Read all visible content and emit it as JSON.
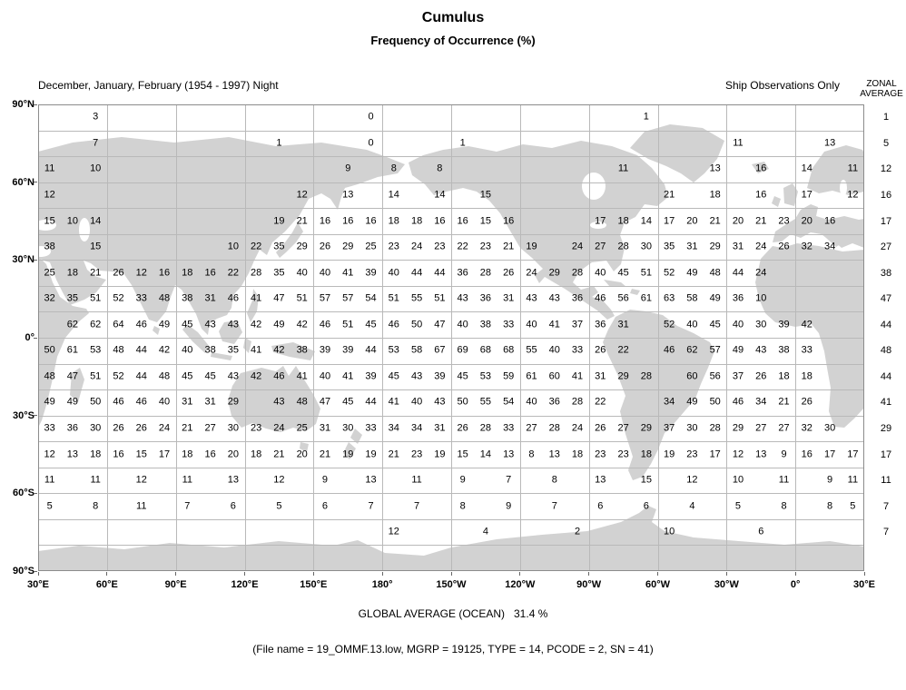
{
  "title": "Cumulus",
  "subtitle": "Frequency of Occurrence (%)",
  "header": {
    "left": "December, January, February (1954 - 1997) Night",
    "right": "Ship Observations Only",
    "zonal_line1": "ZONAL",
    "zonal_line2": "AVERAGE"
  },
  "footer": {
    "global_average": "GLOBAL AVERAGE (OCEAN)   31.4 %",
    "file_info": "(File name = 19_OMMF.13.low, MGRP = 19125, TYPE = 14, PCODE = 2, SN = 41)"
  },
  "colors": {
    "land": "#d2d2d2",
    "grid": "#b9b9b9",
    "border": "#8c8c8c",
    "text": "#000000"
  },
  "chart_data": {
    "type": "heatmap",
    "title": "Cumulus",
    "subtitle": "Frequency of Occurrence (%)",
    "period": "December, January, February (1954 - 1997) Night",
    "source": "Ship Observations Only",
    "units": "percent frequency of occurrence",
    "global_average_ocean_pct": 31.4,
    "lat_ticks": [
      "90°N",
      "60°N",
      "30°N",
      "0°",
      "30°S",
      "60°S",
      "90°S"
    ],
    "lon_ticks": [
      "30°E",
      "60°E",
      "90°E",
      "120°E",
      "150°E",
      "180°",
      "150°W",
      "120°W",
      "90°W",
      "60°W",
      "30°W",
      "0°",
      "30°E"
    ],
    "grid": {
      "cols": 36,
      "rows": 18,
      "cell_deg": 10,
      "lon_start": "30°E"
    },
    "rows": [
      {
        "band": "90N-80N",
        "zonal_average": 1,
        "runs": [
          {
            "start": 2,
            "values": [
              3
            ]
          },
          {
            "start": 14,
            "values": [
              0
            ]
          },
          {
            "start": 26,
            "values": [
              1
            ]
          }
        ]
      },
      {
        "band": "80N-70N",
        "zonal_average": 5,
        "runs": [
          {
            "start": 2,
            "values": [
              7
            ]
          },
          {
            "start": 10,
            "values": [
              1
            ]
          },
          {
            "start": 14,
            "values": [
              0
            ]
          },
          {
            "start": 18,
            "values": [
              1
            ]
          },
          {
            "start": 30,
            "values": [
              11
            ]
          },
          {
            "start": 34,
            "values": [
              13
            ]
          }
        ]
      },
      {
        "band": "70N-60N",
        "zonal_average": 12,
        "runs": [
          {
            "start": 0,
            "values": [
              11
            ]
          },
          {
            "start": 2,
            "values": [
              10
            ]
          },
          {
            "start": 13,
            "step": 2,
            "values": [
              9,
              8,
              8
            ]
          },
          {
            "start": 25,
            "values": [
              11
            ]
          },
          {
            "start": 29,
            "step": 2,
            "values": [
              13,
              16,
              14,
              11
            ]
          }
        ]
      },
      {
        "band": "60N-50N",
        "zonal_average": 16,
        "runs": [
          {
            "start": 0,
            "values": [
              12
            ]
          },
          {
            "start": 11,
            "step": 2,
            "values": [
              12,
              13,
              14,
              14,
              15
            ]
          },
          {
            "start": 27,
            "step": 2,
            "values": [
              21,
              18,
              16,
              17,
              12
            ]
          }
        ]
      },
      {
        "band": "50N-40N",
        "zonal_average": 17,
        "runs": [
          {
            "start": 0,
            "values": [
              15,
              10,
              14
            ]
          },
          {
            "start": 10,
            "values": [
              19,
              21,
              16,
              16,
              16,
              18,
              18,
              16,
              16,
              15,
              16
            ]
          },
          {
            "start": 24,
            "values": [
              17,
              18,
              14,
              17,
              20,
              21,
              20,
              21,
              23,
              20,
              16
            ]
          }
        ]
      },
      {
        "band": "40N-30N",
        "zonal_average": 27,
        "runs": [
          {
            "start": 0,
            "values": [
              38
            ]
          },
          {
            "start": 2,
            "values": [
              15
            ]
          },
          {
            "start": 8,
            "values": [
              10,
              22,
              35,
              29,
              26,
              29,
              25,
              23,
              24,
              23,
              22,
              23,
              21,
              19
            ]
          },
          {
            "start": 23,
            "values": [
              24,
              27,
              28,
              30,
              35,
              31,
              29,
              31,
              24,
              26,
              32,
              34
            ]
          }
        ]
      },
      {
        "band": "30N-20N",
        "zonal_average": 38,
        "runs": [
          {
            "start": 0,
            "values": [
              25,
              18,
              21,
              26,
              12,
              16,
              18,
              16,
              22,
              28,
              35,
              40,
              40,
              41,
              39,
              40,
              44,
              44,
              36,
              28,
              26,
              24,
              29,
              28,
              40,
              45,
              51,
              52,
              49,
              48,
              44,
              24
            ]
          }
        ]
      },
      {
        "band": "20N-10N",
        "zonal_average": 47,
        "runs": [
          {
            "start": 0,
            "values": [
              32,
              35,
              51,
              52,
              33,
              48,
              38,
              31,
              46,
              41,
              47,
              51,
              57,
              57,
              54,
              51,
              55,
              51,
              43,
              36,
              31,
              43,
              43,
              36,
              46,
              56,
              61,
              63,
              58,
              49,
              36,
              10
            ]
          }
        ]
      },
      {
        "band": "10N-0",
        "zonal_average": 44,
        "runs": [
          {
            "start": 1,
            "values": [
              62,
              62,
              64,
              46,
              49,
              45,
              43,
              43,
              42,
              49,
              42,
              46,
              51,
              45,
              46,
              50,
              47,
              40,
              38,
              33,
              40,
              41,
              37,
              36,
              31
            ]
          },
          {
            "start": 27,
            "values": [
              52,
              40,
              45,
              40,
              30,
              39,
              42
            ]
          }
        ]
      },
      {
        "band": "0-10S",
        "zonal_average": 48,
        "runs": [
          {
            "start": 0,
            "values": [
              50,
              61,
              53,
              48,
              44,
              42,
              40,
              38,
              35,
              41,
              42,
              38,
              39,
              39,
              44,
              53,
              58,
              67,
              69,
              68,
              68,
              55,
              40,
              33,
              26,
              22
            ]
          },
          {
            "start": 27,
            "values": [
              46,
              62,
              57,
              49,
              43,
              38,
              33
            ]
          }
        ]
      },
      {
        "band": "10S-20S",
        "zonal_average": 44,
        "runs": [
          {
            "start": 0,
            "values": [
              48,
              47,
              51,
              52,
              44,
              48,
              45,
              45,
              43,
              42,
              46,
              41,
              40,
              41,
              39,
              45,
              43,
              39,
              45,
              53,
              59,
              61,
              60,
              41,
              31,
              29,
              28
            ]
          },
          {
            "start": 28,
            "values": [
              60,
              56,
              37,
              26,
              18,
              18
            ]
          }
        ]
      },
      {
        "band": "20S-30S",
        "zonal_average": 41,
        "runs": [
          {
            "start": 0,
            "values": [
              49,
              49,
              50,
              46,
              46,
              40,
              31,
              31,
              29
            ]
          },
          {
            "start": 10,
            "values": [
              43,
              48,
              47,
              45,
              44,
              41,
              40,
              43,
              50,
              55,
              54,
              40,
              36,
              28,
              22
            ]
          },
          {
            "start": 27,
            "values": [
              34,
              49,
              50,
              46,
              34,
              21,
              26
            ]
          }
        ]
      },
      {
        "band": "30S-40S",
        "zonal_average": 29,
        "runs": [
          {
            "start": 0,
            "values": [
              33,
              36,
              30,
              26,
              26,
              24,
              21,
              27,
              30,
              23,
              24,
              25,
              31,
              30,
              33,
              34,
              34,
              31,
              26,
              28,
              33,
              27,
              28,
              24,
              26,
              27,
              29,
              37,
              30,
              28,
              29,
              27,
              27,
              32,
              30
            ]
          }
        ]
      },
      {
        "band": "40S-50S",
        "zonal_average": 17,
        "runs": [
          {
            "start": 0,
            "values": [
              12,
              13,
              18,
              16,
              15,
              17,
              18,
              16,
              20,
              18,
              21,
              20,
              21,
              19,
              19,
              21,
              23,
              19,
              15,
              14,
              13,
              8,
              13,
              18,
              23,
              23,
              18,
              19,
              23,
              17,
              12,
              13,
              9,
              16,
              17,
              17
            ]
          }
        ]
      },
      {
        "band": "50S-60S",
        "zonal_average": 11,
        "runs": [
          {
            "start": 0,
            "step": 2,
            "values": [
              11,
              11,
              12,
              11,
              13,
              12,
              9,
              13,
              11,
              9,
              7,
              8,
              13,
              15,
              12,
              10,
              11,
              9
            ]
          },
          {
            "start": 35,
            "values": [
              11
            ]
          }
        ]
      },
      {
        "band": "60S-70S",
        "zonal_average": 7,
        "runs": [
          {
            "start": 0,
            "step": 2,
            "values": [
              5,
              8,
              11,
              7,
              6,
              5,
              6,
              7,
              7,
              8,
              9,
              7,
              6,
              6,
              4,
              5,
              8,
              8
            ]
          },
          {
            "start": 35,
            "values": [
              5
            ]
          }
        ]
      },
      {
        "band": "70S-80S",
        "zonal_average": 7,
        "runs": [
          {
            "start": 15,
            "step": 4,
            "values": [
              12,
              4,
              2,
              10,
              6
            ]
          }
        ]
      }
    ]
  }
}
